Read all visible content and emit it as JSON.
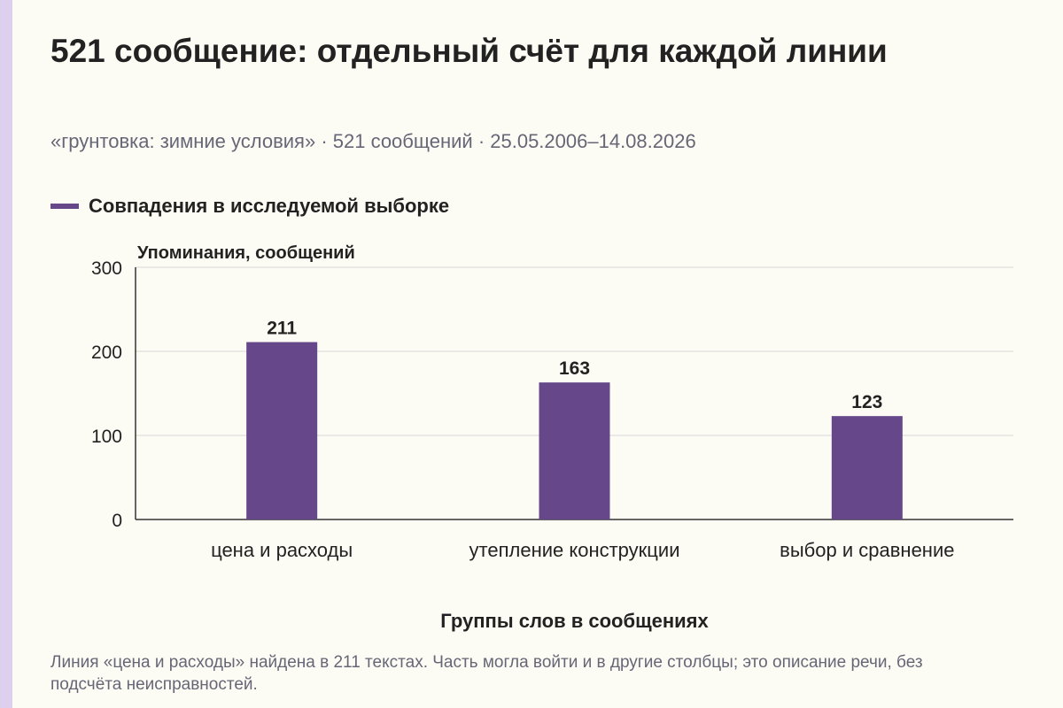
{
  "title": "521 сообщение: отдельный счёт для каждой линии",
  "subtitle": "«грунтовка: зимние условия» · 521 сообщений · 25.05.2006–14.08.2026",
  "legend": {
    "label": "Совпадения в исследуемой выборке",
    "color": "#66478a"
  },
  "chart_data": {
    "type": "bar",
    "categories": [
      "цена и расходы",
      "утепление конструкции",
      "выбор и сравнение"
    ],
    "series": [
      {
        "name": "Совпадения в исследуемой выборке",
        "values": [
          211,
          163,
          123
        ],
        "color": "#66478a"
      }
    ],
    "ylabel": "Упоминания, сообщений",
    "xlabel": "Группы слов в сообщениях",
    "ylim": [
      0,
      300
    ],
    "yticks": [
      0,
      100,
      200,
      300
    ],
    "grid": true,
    "data_labels": true
  },
  "note": "Линия «цена и расходы» найдена в 211 текстах. Часть могла войти и в другие столбцы; это описание речи, без подсчёта неисправностей."
}
